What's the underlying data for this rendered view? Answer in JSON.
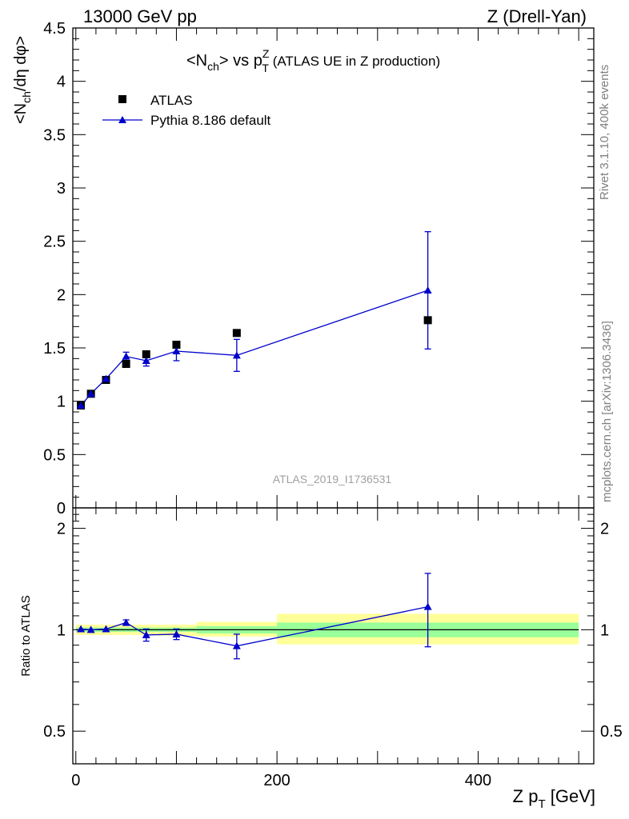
{
  "header": {
    "left": "13000 GeV pp",
    "right": "Z (Drell-Yan)"
  },
  "side_labels": {
    "rivet": "Rivet 3.1.10,  400k events",
    "mcplots": "mcplots.cern.ch [arXiv:1306.3436]"
  },
  "watermark": "ATLAS_2019_I1736531",
  "colors": {
    "data": "#000000",
    "mc": "#0000cc",
    "band_inner": "#99ff99",
    "band_outer": "#ffff99"
  },
  "chart_data": [
    {
      "type": "scatter",
      "title_parts": {
        "lt": "<N",
        "ch": "ch",
        "mid": "> vs p",
        "sup": "Z",
        "sub": "T",
        "rest": " (ATLAS UE in Z production)"
      },
      "ylabel_parts": {
        "a": "<N",
        "sub": "ch",
        "b": "/dη dφ>"
      },
      "ylim": [
        0,
        4.5
      ],
      "xlim": [
        -3,
        515
      ],
      "yticks": [
        {
          "v": 0,
          "label": "0"
        },
        {
          "v": 0.5,
          "label": "0.5"
        },
        {
          "v": 1,
          "label": "1"
        },
        {
          "v": 1.5,
          "label": "1.5"
        },
        {
          "v": 2,
          "label": "2"
        },
        {
          "v": 2.5,
          "label": "2.5"
        },
        {
          "v": 3,
          "label": "3"
        },
        {
          "v": 3.5,
          "label": "3.5"
        },
        {
          "v": 4,
          "label": "4"
        },
        {
          "v": 4.5,
          "label": "4.5"
        }
      ],
      "legend_position": "top-left",
      "series": [
        {
          "name": "ATLAS",
          "marker": "square",
          "x": [
            5,
            15,
            30,
            50,
            70,
            100,
            160,
            350
          ],
          "y": [
            0.96,
            1.07,
            1.2,
            1.35,
            1.44,
            1.53,
            1.64,
            1.76
          ]
        },
        {
          "name": "Pythia 8.186 default",
          "marker": "triangle",
          "x": [
            5,
            15,
            30,
            50,
            70,
            100,
            160,
            350
          ],
          "y": [
            0.96,
            1.07,
            1.21,
            1.42,
            1.38,
            1.47,
            1.43,
            2.04
          ],
          "err": [
            0.0,
            0.0,
            0.0,
            0.04,
            0.05,
            0.09,
            0.15,
            0.55
          ]
        }
      ]
    },
    {
      "type": "scatter",
      "ylabel": "Ratio to ATLAS",
      "xlabel_parts": {
        "a": "Z p",
        "sub": "T",
        "b": " [GeV]"
      },
      "xlim": [
        -3,
        515
      ],
      "ylim": [
        0.4,
        2.3
      ],
      "log_y": true,
      "xticks": [
        {
          "v": 0,
          "label": "0"
        },
        {
          "v": 200,
          "label": "200"
        },
        {
          "v": 400,
          "label": "400"
        }
      ],
      "yticks": [
        {
          "v": 0.5,
          "label": "0.5"
        },
        {
          "v": 1,
          "label": "1"
        },
        {
          "v": 2,
          "label": "2"
        }
      ],
      "bands": [
        {
          "x0": 0,
          "x1": 10,
          "inner": [
            0.985,
            1.015
          ],
          "outer": [
            0.965,
            1.035
          ]
        },
        {
          "x0": 10,
          "x1": 20,
          "inner": [
            0.985,
            1.015
          ],
          "outer": [
            0.965,
            1.035
          ]
        },
        {
          "x0": 20,
          "x1": 40,
          "inner": [
            0.985,
            1.015
          ],
          "outer": [
            0.965,
            1.035
          ]
        },
        {
          "x0": 40,
          "x1": 60,
          "inner": [
            0.985,
            1.015
          ],
          "outer": [
            0.965,
            1.035
          ]
        },
        {
          "x0": 60,
          "x1": 80,
          "inner": [
            0.985,
            1.015
          ],
          "outer": [
            0.965,
            1.035
          ]
        },
        {
          "x0": 80,
          "x1": 120,
          "inner": [
            0.985,
            1.015
          ],
          "outer": [
            0.96,
            1.035
          ]
        },
        {
          "x0": 120,
          "x1": 200,
          "inner": [
            0.975,
            1.025
          ],
          "outer": [
            0.955,
            1.055
          ]
        },
        {
          "x0": 200,
          "x1": 500,
          "inner": [
            0.95,
            1.05
          ],
          "outer": [
            0.905,
            1.115
          ]
        }
      ],
      "series": [
        {
          "name": "Pythia 8.186 default",
          "marker": "triangle",
          "x": [
            5,
            15,
            30,
            50,
            70,
            100,
            160,
            350
          ],
          "y": [
            1.005,
            1.0,
            1.005,
            1.05,
            0.965,
            0.97,
            0.895,
            1.17
          ],
          "err_lo": [
            0.0,
            0.0,
            0.0,
            0.02,
            0.04,
            0.035,
            0.075,
            0.28
          ],
          "err_hi": [
            0.0,
            0.0,
            0.0,
            0.02,
            0.04,
            0.035,
            0.075,
            0.3
          ]
        }
      ]
    }
  ]
}
